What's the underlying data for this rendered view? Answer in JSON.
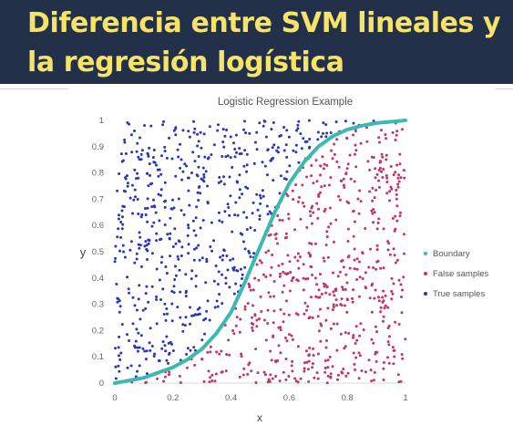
{
  "slide": {
    "title": "Diferencia entre SVM lineales y la regresión logística"
  },
  "chart_data": {
    "type": "scatter",
    "title": "Logistic Regression Example",
    "xlabel": "x",
    "ylabel": "y",
    "xlim": [
      0,
      1
    ],
    "ylim": [
      0,
      1
    ],
    "x_ticks": [
      "0",
      "0.2",
      "0.4",
      "0.6",
      "0.8",
      "1"
    ],
    "y_ticks": [
      "0",
      "0.1",
      "0.2",
      "0.3",
      "0.4",
      "0.5",
      "0.6",
      "0.7",
      "0.8",
      "0.9",
      "1"
    ],
    "grid": false,
    "legend_position": "right",
    "series": [
      {
        "name": "Boundary",
        "kind": "line",
        "color": "#3cb9b0",
        "x": [
          0,
          0.05,
          0.1,
          0.15,
          0.2,
          0.25,
          0.3,
          0.35,
          0.4,
          0.45,
          0.5,
          0.55,
          0.6,
          0.65,
          0.7,
          0.75,
          0.8,
          0.85,
          0.9,
          0.95,
          1
        ],
        "y": [
          0.0,
          0.01,
          0.02,
          0.04,
          0.06,
          0.09,
          0.13,
          0.19,
          0.27,
          0.39,
          0.52,
          0.65,
          0.76,
          0.84,
          0.9,
          0.94,
          0.965,
          0.98,
          0.99,
          0.995,
          1.0
        ]
      },
      {
        "name": "False samples",
        "kind": "points",
        "color": "#c2336f",
        "description": "approximately 600 random points lying below the boundary curve",
        "count": 600
      },
      {
        "name": "True samples",
        "kind": "points",
        "color": "#2a36b8",
        "description": "approximately 600 random points lying above the boundary curve",
        "count": 600
      }
    ]
  }
}
